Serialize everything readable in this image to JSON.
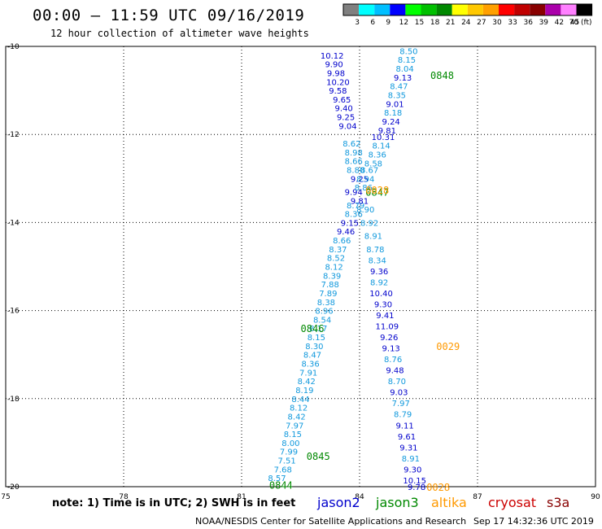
{
  "header": {
    "title": "00:00 – 11:59 UTC 09/16/2019",
    "subtitle": "12 hour collection of altimeter wave heights"
  },
  "colorbar": {
    "labels": [
      "3",
      "6",
      "9",
      "12",
      "15",
      "18",
      "21",
      "24",
      "27",
      "30",
      "33",
      "36",
      "39",
      "42",
      "45",
      "70 (ft)"
    ],
    "colors": [
      "#808080",
      "#00ffff",
      "#00bfff",
      "#0000ff",
      "#00ff00",
      "#00c000",
      "#008800",
      "#ffff00",
      "#ffc800",
      "#ffa000",
      "#ff0000",
      "#c00000",
      "#880000",
      "#aa00aa",
      "#ff80ff",
      "#000000"
    ]
  },
  "note": "note: 1) Time is in UTC; 2) SWH is in feet",
  "satellites": [
    {
      "name": "jason2",
      "color": "#0000cc"
    },
    {
      "name": "jason3",
      "color": "#008800"
    },
    {
      "name": "altika",
      "color": "#ff9900"
    },
    {
      "name": "cryosat",
      "color": "#cc0000"
    },
    {
      "name": "s3a",
      "color": "#880000"
    }
  ],
  "footer": {
    "center": "NOAA/NESDIS Center for Satellite Applications and Research",
    "right": "Sep 17 14:32:36 UTC 2019"
  },
  "chart_data": {
    "type": "scatter",
    "xlim": [
      75,
      90
    ],
    "ylim": [
      -20,
      -10
    ],
    "x_ticks": [
      "75",
      "78",
      "81",
      "84",
      "87",
      "90"
    ],
    "y_ticks": [
      "-10",
      "-12",
      "-14",
      "-16",
      "-18",
      "-20"
    ],
    "grid": true,
    "labels": [
      {
        "lon": 83.3,
        "lat": -10.2,
        "text": "10.12",
        "color": "#0000cc"
      },
      {
        "lon": 83.35,
        "lat": -10.4,
        "text": "9.90",
        "color": "#0000cc"
      },
      {
        "lon": 83.4,
        "lat": -10.6,
        "text": "9.98",
        "color": "#0000cc"
      },
      {
        "lon": 83.45,
        "lat": -10.8,
        "text": "10.20",
        "color": "#0000cc"
      },
      {
        "lon": 83.45,
        "lat": -11.0,
        "text": "9.58",
        "color": "#0000cc"
      },
      {
        "lon": 83.55,
        "lat": -11.2,
        "text": "9.65",
        "color": "#0000cc"
      },
      {
        "lon": 83.6,
        "lat": -11.4,
        "text": "9.40",
        "color": "#0000cc"
      },
      {
        "lon": 83.65,
        "lat": -11.6,
        "text": "9.25",
        "color": "#0000cc"
      },
      {
        "lon": 83.7,
        "lat": -11.8,
        "text": "9.04",
        "color": "#0000cc"
      },
      {
        "lon": 83.8,
        "lat": -12.2,
        "text": "8.62",
        "color": "#1199dd"
      },
      {
        "lon": 83.85,
        "lat": -12.4,
        "text": "8.98",
        "color": "#1199dd"
      },
      {
        "lon": 83.85,
        "lat": -12.6,
        "text": "8.66",
        "color": "#1199dd"
      },
      {
        "lon": 83.9,
        "lat": -12.8,
        "text": "8.80",
        "color": "#1199dd"
      },
      {
        "lon": 84.0,
        "lat": -13.0,
        "text": "9.25",
        "color": "#0000cc"
      },
      {
        "lon": 83.85,
        "lat": -13.3,
        "text": "9.94",
        "color": "#0000cc"
      },
      {
        "lon": 83.9,
        "lat": -13.6,
        "text": "8.79",
        "color": "#1199dd"
      },
      {
        "lon": 83.85,
        "lat": -13.8,
        "text": "8.36",
        "color": "#1199dd"
      },
      {
        "lon": 83.75,
        "lat": -14.0,
        "text": "9.15",
        "color": "#0000cc"
      },
      {
        "lon": 83.65,
        "lat": -14.2,
        "text": "9.46",
        "color": "#0000cc"
      },
      {
        "lon": 83.55,
        "lat": -14.4,
        "text": "8.66",
        "color": "#1199dd"
      },
      {
        "lon": 83.45,
        "lat": -14.6,
        "text": "8.37",
        "color": "#1199dd"
      },
      {
        "lon": 83.4,
        "lat": -14.8,
        "text": "8.52",
        "color": "#1199dd"
      },
      {
        "lon": 83.35,
        "lat": -15.0,
        "text": "8.12",
        "color": "#1199dd"
      },
      {
        "lon": 83.3,
        "lat": -15.2,
        "text": "8.39",
        "color": "#1199dd"
      },
      {
        "lon": 83.25,
        "lat": -15.4,
        "text": "7.88",
        "color": "#1199dd"
      },
      {
        "lon": 83.2,
        "lat": -15.6,
        "text": "7.89",
        "color": "#1199dd"
      },
      {
        "lon": 83.15,
        "lat": -15.8,
        "text": "8.38",
        "color": "#1199dd"
      },
      {
        "lon": 83.1,
        "lat": -16.0,
        "text": "8.96",
        "color": "#1199dd"
      },
      {
        "lon": 83.05,
        "lat": -16.2,
        "text": "8.54",
        "color": "#1199dd"
      },
      {
        "lon": 82.95,
        "lat": -16.4,
        "text": "8.17",
        "color": "#1199dd"
      },
      {
        "lon": 82.9,
        "lat": -16.6,
        "text": "8.15",
        "color": "#1199dd"
      },
      {
        "lon": 82.85,
        "lat": -16.8,
        "text": "8.30",
        "color": "#1199dd"
      },
      {
        "lon": 82.8,
        "lat": -17.0,
        "text": "8.47",
        "color": "#1199dd"
      },
      {
        "lon": 82.75,
        "lat": -17.2,
        "text": "8.36",
        "color": "#1199dd"
      },
      {
        "lon": 82.7,
        "lat": -17.4,
        "text": "7.91",
        "color": "#1199dd"
      },
      {
        "lon": 82.65,
        "lat": -17.6,
        "text": "8.42",
        "color": "#1199dd"
      },
      {
        "lon": 82.6,
        "lat": -17.8,
        "text": "8.19",
        "color": "#1199dd"
      },
      {
        "lon": 82.5,
        "lat": -18.0,
        "text": "8.44",
        "color": "#1199dd"
      },
      {
        "lon": 82.45,
        "lat": -18.2,
        "text": "8.12",
        "color": "#1199dd"
      },
      {
        "lon": 82.4,
        "lat": -18.4,
        "text": "8.42",
        "color": "#1199dd"
      },
      {
        "lon": 82.35,
        "lat": -18.6,
        "text": "7.97",
        "color": "#1199dd"
      },
      {
        "lon": 82.3,
        "lat": -18.8,
        "text": "8.15",
        "color": "#1199dd"
      },
      {
        "lon": 82.25,
        "lat": -19.0,
        "text": "8.00",
        "color": "#1199dd"
      },
      {
        "lon": 82.2,
        "lat": -19.2,
        "text": "7.99",
        "color": "#1199dd"
      },
      {
        "lon": 82.15,
        "lat": -19.4,
        "text": "7.51",
        "color": "#1199dd"
      },
      {
        "lon": 82.05,
        "lat": -19.6,
        "text": "7.68",
        "color": "#1199dd"
      },
      {
        "lon": 81.9,
        "lat": -19.8,
        "text": "8.57",
        "color": "#1199dd"
      },
      {
        "lon": 85.25,
        "lat": -10.1,
        "text": "8.50",
        "color": "#1199dd"
      },
      {
        "lon": 85.2,
        "lat": -10.3,
        "text": "8.15",
        "color": "#1199dd"
      },
      {
        "lon": 85.15,
        "lat": -10.5,
        "text": "8.04",
        "color": "#1199dd"
      },
      {
        "lon": 85.1,
        "lat": -10.7,
        "text": "9.13",
        "color": "#0000cc"
      },
      {
        "lon": 85.0,
        "lat": -10.9,
        "text": "8.47",
        "color": "#1199dd"
      },
      {
        "lon": 84.95,
        "lat": -11.1,
        "text": "8.35",
        "color": "#1199dd"
      },
      {
        "lon": 84.9,
        "lat": -11.3,
        "text": "9.01",
        "color": "#0000cc"
      },
      {
        "lon": 84.85,
        "lat": -11.5,
        "text": "8.18",
        "color": "#1199dd"
      },
      {
        "lon": 84.8,
        "lat": -11.7,
        "text": "9.24",
        "color": "#0000cc"
      },
      {
        "lon": 84.7,
        "lat": -11.9,
        "text": "9.81",
        "color": "#0000cc"
      },
      {
        "lon": 84.6,
        "lat": -12.05,
        "text": "10.31",
        "color": "#0000cc"
      },
      {
        "lon": 84.55,
        "lat": -12.25,
        "text": "8.14",
        "color": "#1199dd"
      },
      {
        "lon": 84.45,
        "lat": -12.45,
        "text": "8.36",
        "color": "#1199dd"
      },
      {
        "lon": 84.35,
        "lat": -12.65,
        "text": "8.58",
        "color": "#1199dd"
      },
      {
        "lon": 84.25,
        "lat": -12.8,
        "text": "8.67",
        "color": "#1199dd"
      },
      {
        "lon": 84.15,
        "lat": -13.0,
        "text": "8.94",
        "color": "#1199dd"
      },
      {
        "lon": 84.1,
        "lat": -13.2,
        "text": "8.86",
        "color": "#1199dd"
      },
      {
        "lon": 84.0,
        "lat": -13.5,
        "text": "9.81",
        "color": "#0000cc"
      },
      {
        "lon": 84.15,
        "lat": -13.7,
        "text": "8.90",
        "color": "#1199dd"
      },
      {
        "lon": 84.25,
        "lat": -14.0,
        "text": "8.92",
        "color": "#1199dd"
      },
      {
        "lon": 84.35,
        "lat": -14.3,
        "text": "8.91",
        "color": "#1199dd"
      },
      {
        "lon": 84.4,
        "lat": -14.6,
        "text": "8.78",
        "color": "#1199dd"
      },
      {
        "lon": 84.45,
        "lat": -14.85,
        "text": "8.34",
        "color": "#1199dd"
      },
      {
        "lon": 84.5,
        "lat": -15.1,
        "text": "9.36",
        "color": "#0000cc"
      },
      {
        "lon": 84.5,
        "lat": -15.35,
        "text": "8.92",
        "color": "#1199dd"
      },
      {
        "lon": 84.55,
        "lat": -15.6,
        "text": "10.40",
        "color": "#0000cc"
      },
      {
        "lon": 84.6,
        "lat": -15.85,
        "text": "9.30",
        "color": "#0000cc"
      },
      {
        "lon": 84.65,
        "lat": -16.1,
        "text": "9.41",
        "color": "#0000cc"
      },
      {
        "lon": 84.7,
        "lat": -16.35,
        "text": "11.09",
        "color": "#0000cc"
      },
      {
        "lon": 84.75,
        "lat": -16.6,
        "text": "9.26",
        "color": "#0000cc"
      },
      {
        "lon": 84.8,
        "lat": -16.85,
        "text": "9.13",
        "color": "#0000cc"
      },
      {
        "lon": 84.85,
        "lat": -17.1,
        "text": "8.76",
        "color": "#1199dd"
      },
      {
        "lon": 84.9,
        "lat": -17.35,
        "text": "9.48",
        "color": "#0000cc"
      },
      {
        "lon": 84.95,
        "lat": -17.6,
        "text": "8.70",
        "color": "#1199dd"
      },
      {
        "lon": 85.0,
        "lat": -17.85,
        "text": "9.03",
        "color": "#0000cc"
      },
      {
        "lon": 85.05,
        "lat": -18.1,
        "text": "7.97",
        "color": "#1199dd"
      },
      {
        "lon": 85.1,
        "lat": -18.35,
        "text": "8.79",
        "color": "#1199dd"
      },
      {
        "lon": 85.15,
        "lat": -18.6,
        "text": "9.11",
        "color": "#0000cc"
      },
      {
        "lon": 85.2,
        "lat": -18.85,
        "text": "9.61",
        "color": "#0000cc"
      },
      {
        "lon": 85.25,
        "lat": -19.1,
        "text": "9.31",
        "color": "#0000cc"
      },
      {
        "lon": 85.3,
        "lat": -19.35,
        "text": "8.91",
        "color": "#1199dd"
      },
      {
        "lon": 85.35,
        "lat": -19.6,
        "text": "9.30",
        "color": "#0000cc"
      },
      {
        "lon": 85.4,
        "lat": -19.85,
        "text": "10.15",
        "color": "#0000cc"
      },
      {
        "lon": 85.45,
        "lat": -20.0,
        "text": "9.78",
        "color": "#0000cc"
      }
    ],
    "times": [
      {
        "lon": 86.1,
        "lat": -10.65,
        "text": "0848",
        "color": "#008800"
      },
      {
        "lon": 84.45,
        "lat": -13.3,
        "text": "0847",
        "color": "#008800"
      },
      {
        "lon": 84.45,
        "lat": -13.25,
        "text": "0028",
        "color": "#ff9900"
      },
      {
        "lon": 82.8,
        "lat": -16.4,
        "text": "0846",
        "color": "#008800"
      },
      {
        "lon": 86.25,
        "lat": -16.8,
        "text": "0029",
        "color": "#ff9900"
      },
      {
        "lon": 82.95,
        "lat": -19.3,
        "text": "0845",
        "color": "#008800"
      },
      {
        "lon": 82.0,
        "lat": -19.95,
        "text": "0844",
        "color": "#008800"
      },
      {
        "lon": 86.0,
        "lat": -20.0,
        "text": "0028",
        "color": "#ff9900"
      }
    ]
  }
}
